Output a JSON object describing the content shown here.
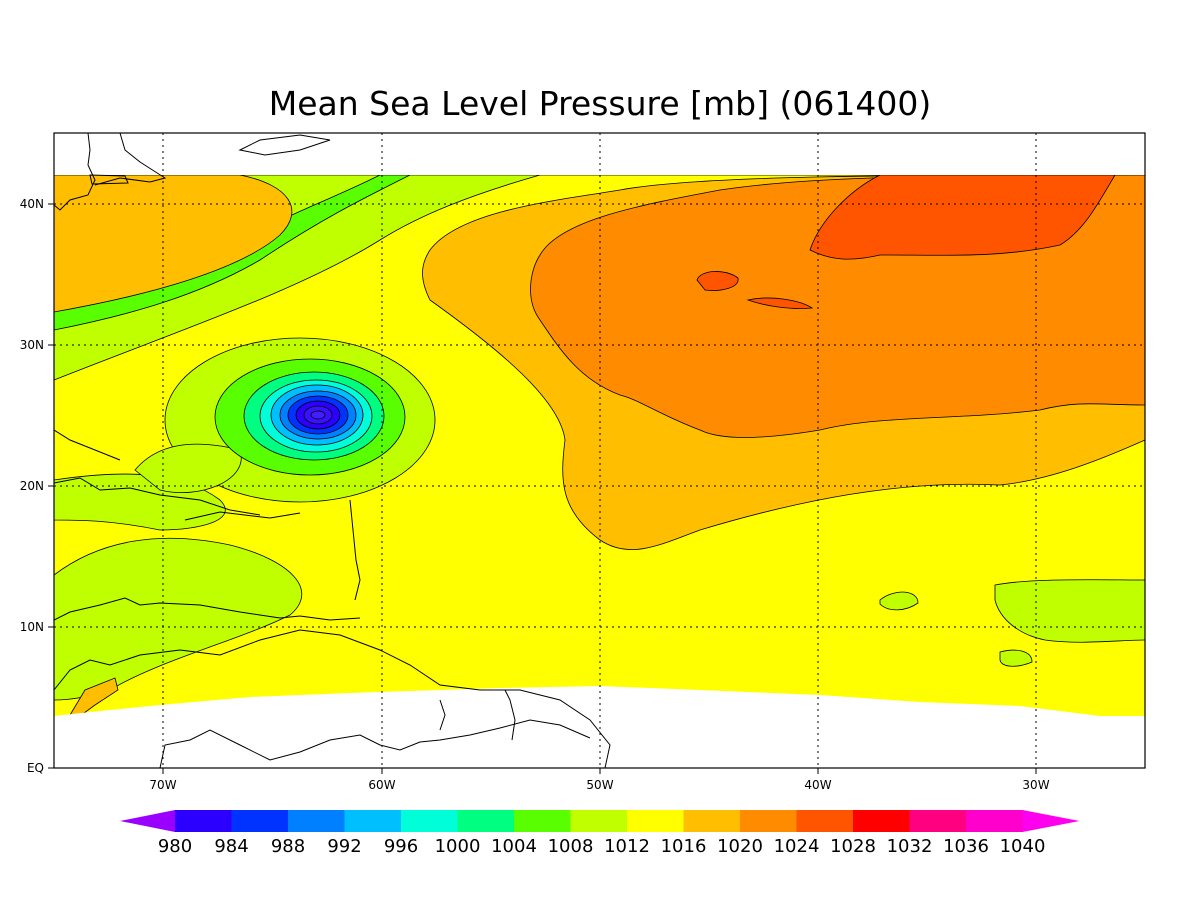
{
  "title": "Mean Sea Level Pressure [mb] (061400)",
  "map": {
    "region": "North Atlantic",
    "lon_range": [
      -75,
      -25
    ],
    "lat_range": [
      0,
      45
    ],
    "x_ticks": [
      {
        "lon": -70,
        "label": "70W"
      },
      {
        "lon": -60,
        "label": "60W"
      },
      {
        "lon": -50,
        "label": "50W"
      },
      {
        "lon": -40,
        "label": "40W"
      },
      {
        "lon": -30,
        "label": "30W"
      }
    ],
    "y_ticks": [
      {
        "lat": 0,
        "label": "EQ"
      },
      {
        "lat": 10,
        "label": "10N"
      },
      {
        "lat": 20,
        "label": "20N"
      },
      {
        "lat": 30,
        "label": "30N"
      },
      {
        "lat": 40,
        "label": "40N"
      }
    ],
    "grid": true,
    "low_center": {
      "lon": -63,
      "lat": 25,
      "pressure_min": 980
    },
    "high_center": {
      "lon": -37,
      "lat": 40,
      "pressure_max": 1028
    }
  },
  "colorbar": {
    "levels": [
      "980",
      "984",
      "988",
      "992",
      "996",
      "1000",
      "1004",
      "1008",
      "1012",
      "1016",
      "1020",
      "1024",
      "1028",
      "1032",
      "1036",
      "1040"
    ],
    "colors": [
      "#9a00ff",
      "#2b00ff",
      "#0033ff",
      "#0080ff",
      "#00bfff",
      "#00ffd9",
      "#00ff80",
      "#59ff00",
      "#bfff00",
      "#ffff00",
      "#ffbf00",
      "#ff8c00",
      "#ff5500",
      "#ff0000",
      "#ff0080",
      "#ff00cc",
      "#ff00ee"
    ]
  }
}
